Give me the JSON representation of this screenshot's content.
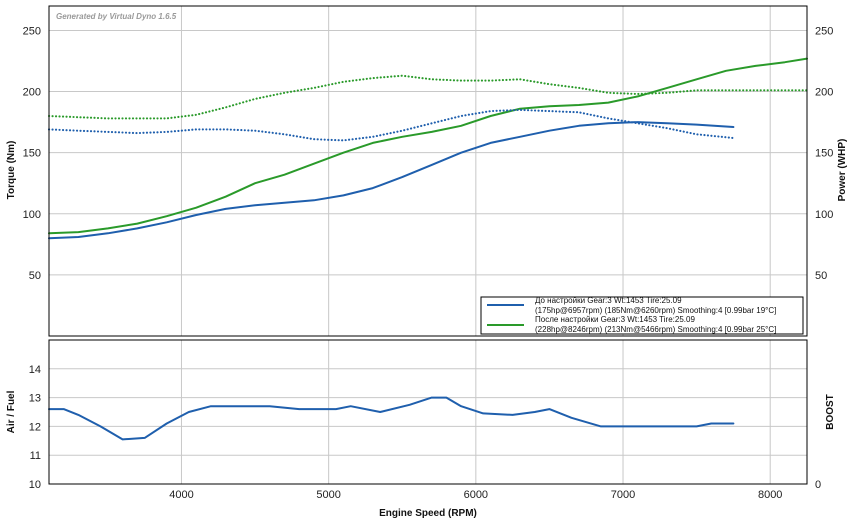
{
  "watermark": "Generated by Virtual Dyno 1.6.5",
  "colors": {
    "before": "#1f5fad",
    "after": "#2a9a2a",
    "grid": "#c8c8c8",
    "frame": "#000000"
  },
  "chart_data": [
    {
      "type": "line",
      "panel": "top",
      "ylabel": "Torque (Nm)",
      "y2label": "Power (WHP)",
      "xlim": [
        3100,
        8250
      ],
      "ylim": [
        0,
        270
      ],
      "yticks": [
        50,
        100,
        150,
        200,
        250
      ],
      "y2ticks": [
        50,
        100,
        150,
        200,
        250
      ],
      "xgrid": [
        4000,
        5000,
        6000,
        7000,
        8000
      ],
      "grid": true,
      "legend_position": "bottom-right",
      "legend": [
        {
          "key": "before",
          "line1": "До настройки Gear:3 Wt:1453 Tire:25.09",
          "line2": "(175hp@6957rpm) (185Nm@6260rpm) Smoothing:4 [0.99bar 19°C]"
        },
        {
          "key": "after",
          "line1": "После настройки Gear:3 Wt:1453 Tire:25.09",
          "line2": "(228hp@8246rpm) (213Nm@5466rpm) Smoothing:4 [0.99bar 25°C]"
        }
      ],
      "series": [
        {
          "key": "before",
          "kind": "power",
          "style": "solid",
          "x": [
            3100,
            3300,
            3500,
            3700,
            3900,
            4100,
            4300,
            4500,
            4700,
            4900,
            5100,
            5300,
            5500,
            5700,
            5900,
            6100,
            6300,
            6500,
            6700,
            6900,
            7100,
            7300,
            7500,
            7750
          ],
          "y": [
            80,
            81,
            84,
            88,
            93,
            99,
            104,
            107,
            109,
            111,
            115,
            121,
            130,
            140,
            150,
            158,
            163,
            168,
            172,
            174,
            175,
            174,
            173,
            171
          ]
        },
        {
          "key": "after",
          "kind": "power",
          "style": "solid",
          "x": [
            3100,
            3300,
            3500,
            3700,
            3900,
            4100,
            4300,
            4500,
            4700,
            4900,
            5100,
            5300,
            5500,
            5700,
            5900,
            6100,
            6300,
            6500,
            6700,
            6900,
            7100,
            7300,
            7500,
            7700,
            7900,
            8100,
            8250
          ],
          "y": [
            84,
            85,
            88,
            92,
            98,
            105,
            114,
            125,
            132,
            141,
            150,
            158,
            163,
            167,
            172,
            180,
            186,
            188,
            189,
            191,
            196,
            203,
            210,
            217,
            221,
            224,
            227
          ]
        },
        {
          "key": "before",
          "kind": "torque",
          "style": "dotted",
          "x": [
            3100,
            3300,
            3500,
            3700,
            3900,
            4100,
            4300,
            4500,
            4700,
            4900,
            5100,
            5300,
            5500,
            5700,
            5900,
            6100,
            6300,
            6500,
            6700,
            6900,
            7100,
            7300,
            7500,
            7750
          ],
          "y": [
            169,
            168,
            167,
            166,
            167,
            169,
            169,
            168,
            165,
            161,
            160,
            163,
            168,
            174,
            180,
            184,
            185,
            184,
            183,
            178,
            174,
            170,
            165,
            162
          ]
        },
        {
          "key": "after",
          "kind": "torque",
          "style": "dotted",
          "x": [
            3100,
            3300,
            3500,
            3700,
            3900,
            4100,
            4300,
            4500,
            4700,
            4900,
            5100,
            5300,
            5500,
            5700,
            5900,
            6100,
            6300,
            6500,
            6700,
            6900,
            7100,
            7300,
            7500,
            7700,
            7900,
            8100,
            8250
          ],
          "y": [
            180,
            179,
            178,
            178,
            178,
            181,
            187,
            194,
            199,
            203,
            208,
            211,
            213,
            210,
            209,
            209,
            210,
            206,
            203,
            199,
            198,
            199,
            201,
            201,
            201,
            201,
            201
          ]
        }
      ]
    },
    {
      "type": "line",
      "panel": "bottom",
      "xlabel": "Engine Speed (RPM)",
      "ylabel": "Air / Fuel",
      "y2label": "BOOST",
      "xlim": [
        3100,
        8250
      ],
      "ylim": [
        10,
        15
      ],
      "yticks": [
        10,
        11,
        12,
        13,
        14
      ],
      "y2ticks": [
        0
      ],
      "xticks": [
        4000,
        5000,
        6000,
        7000,
        8000
      ],
      "grid": true,
      "series": [
        {
          "key": "before",
          "kind": "afr",
          "style": "solid",
          "x": [
            3100,
            3200,
            3300,
            3450,
            3600,
            3750,
            3900,
            4050,
            4200,
            4400,
            4600,
            4800,
            4950,
            5050,
            5150,
            5350,
            5550,
            5700,
            5800,
            5900,
            6050,
            6250,
            6400,
            6500,
            6650,
            6850,
            7000,
            7200,
            7400,
            7500,
            7600,
            7750
          ],
          "y": [
            12.6,
            12.6,
            12.4,
            12.0,
            11.55,
            11.6,
            12.1,
            12.5,
            12.7,
            12.7,
            12.7,
            12.6,
            12.6,
            12.6,
            12.7,
            12.5,
            12.75,
            13.0,
            13.0,
            12.7,
            12.45,
            12.4,
            12.5,
            12.6,
            12.3,
            12.0,
            12.0,
            12.0,
            12.0,
            12.0,
            12.1,
            12.1
          ]
        }
      ]
    }
  ]
}
